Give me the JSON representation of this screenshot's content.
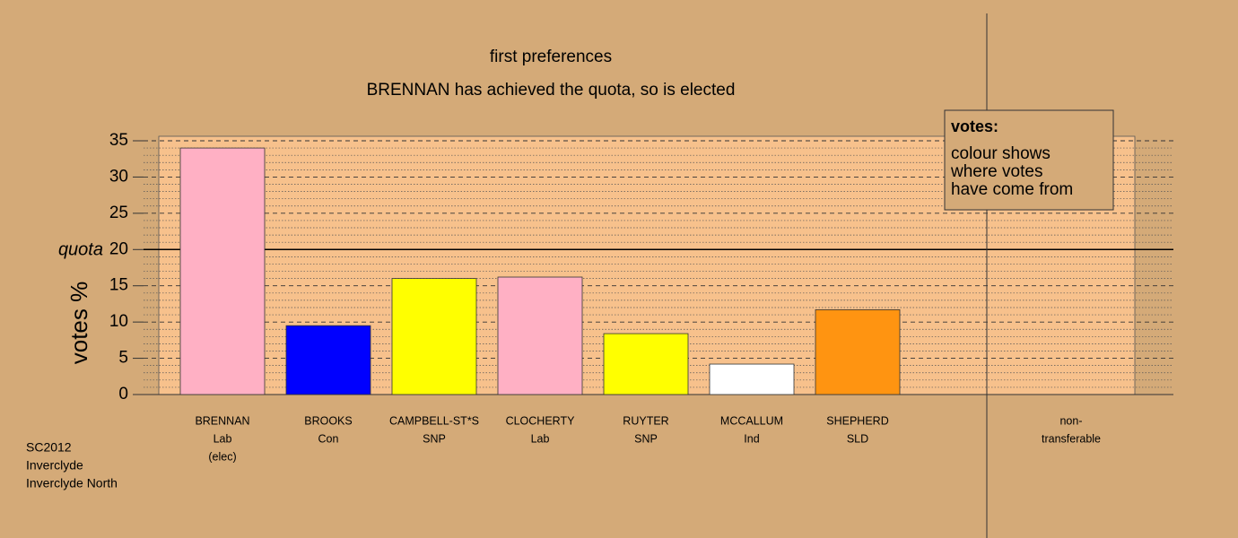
{
  "chart_data": {
    "type": "bar",
    "title": "first preferences",
    "subtitle": "BRENNAN has achieved the quota, so is elected",
    "y_label": "votes %",
    "categories": [
      [
        "BRENNAN",
        "Lab",
        "(elec)"
      ],
      [
        "BROOKS",
        "Con"
      ],
      [
        "CAMPBELL-ST*S",
        "SNP"
      ],
      [
        "CLOCHERTY",
        "Lab"
      ],
      [
        "RUYTER",
        "SNP"
      ],
      [
        "MCCALLUM",
        "Ind"
      ],
      [
        "SHEPHERD",
        "SLD"
      ],
      [
        "non-",
        "transferable"
      ]
    ],
    "values": [
      34,
      9.5,
      16,
      16.2,
      8.4,
      4.2,
      11.7,
      null
    ],
    "colors": [
      "#ffb0c4",
      "#0000ff",
      "#ffff00",
      "#ffb0c4",
      "#ffff00",
      "#ffffff",
      "#ff9411",
      null
    ],
    "ylim": [
      0,
      35
    ],
    "yticks": [
      0,
      5,
      10,
      15,
      20,
      25,
      30,
      35
    ],
    "yminor": [
      1,
      2,
      3,
      4,
      6,
      7,
      8,
      9,
      11,
      12,
      13,
      14,
      16,
      17,
      18,
      19,
      21,
      22,
      23,
      24,
      26,
      27,
      28,
      29,
      31,
      32,
      33,
      34
    ],
    "quota": 20,
    "quota_label": "quota",
    "legend": {
      "title": "votes:",
      "lines": [
        "colour shows",
        "where votes",
        "have come from"
      ]
    },
    "footer": [
      "SC2012",
      "Inverclyde",
      "Inverclyde North"
    ]
  }
}
